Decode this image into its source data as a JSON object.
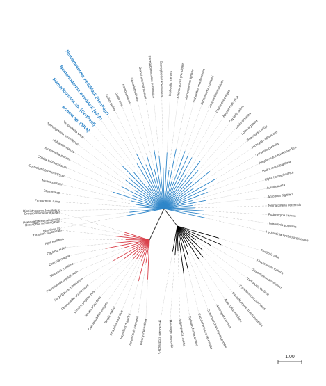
{
  "tree": {
    "highlighted_leaves": [
      "Nemertoderma westbladi (GenPept)",
      "Nemertoderma westbladi (SRA)",
      "Nemertoderma sp. (GenPept)",
      "Acoela sp. (SRA)"
    ],
    "clades": [
      {
        "name_color": "#2f86c9",
        "leaves": [
          "Hydractinia symbiolongicarpus",
          "Hydractinia polyclina",
          "Podocoryna carnea",
          "Nematostella vectensis",
          "Acropora digitifera",
          "Aurelia aurita",
          "Clytia hemisphaerica",
          "Hydra magnipapillata",
          "Amphimedon queenslandica",
          "Oscarella carmela",
          "Trichoplax adhaerens",
          "Mnemiopsis leidyi",
          "Lottia gigantea",
          "Lottia gigantea",
          "Capitella teleta",
          "Aplysia californica",
          "Crassostrea gigas",
          "Octopus bimaculoides",
          "Schistosoma mansoni",
          "Schmidtea mediterranea",
          "Macrostomum lignano",
          "Echinococcus granulosus",
          "Helobdella robusta",
          "Saccoglossus kowalevskii",
          "Strongylocentrotus purpuratus",
          "Branchiostoma floridae",
          "Ciona intestinalis",
          "Homo sapiens",
          "Danio rerio",
          "Gallus gallus",
          "Xenoturbella bocki",
          "Symsagittifera roscoffensis",
          "Hofstenia miamia",
          "Isodiametra pulchra",
          "Childia submaculatum",
          "Convolutriloba macropyga",
          "Meara stichopi",
          "Sterreria sp.",
          "Paratomella rubra",
          "Diopisthoporus longitubus",
          "Praesagittifera naikaiensis",
          "Waminoa sp."
        ]
      },
      {
        "name_color": "#d9404a",
        "leaves": [
          "Drosophila melanogaster",
          "Drosophila melanogaster",
          "Tribolium castaneum",
          "Apis mellifera",
          "Daphnia pulex",
          "Daphnia magna",
          "Strigamia maritima",
          "Parasteatoda tepidariorum",
          "Stegodyphus mimosarum",
          "Centruroides sculpturatus",
          "Limulus polyphemus",
          "Ixodes scapularis",
          "Caenorhabditis elegans",
          "Brugia malayi",
          "Priapulus caudatus",
          "Hypsibius dujardini",
          "Peripatopsis capensis",
          "Tetranychus urticae"
        ]
      },
      {
        "name_color": "#000000",
        "leaves": [
          "Capsaspora owczarzaki",
          "Monosiga brevicollis",
          "Salpingoeca rosetta",
          "Sphaeroforma arctica",
          "Saccharomyces cerevisiae",
          "Schizosaccharomyces pombe",
          "Neurospora crassa",
          "Aspergillus nidulans",
          "Batrachochytrium dendrobatidis",
          "Spizellomyces punctatus",
          "Arabidopsis thaliana",
          "Dictyostelium discoideum",
          "Thecamonas trahens",
          "Fonticula alba"
        ]
      }
    ],
    "scale_bar": {
      "label": "1.00"
    }
  }
}
